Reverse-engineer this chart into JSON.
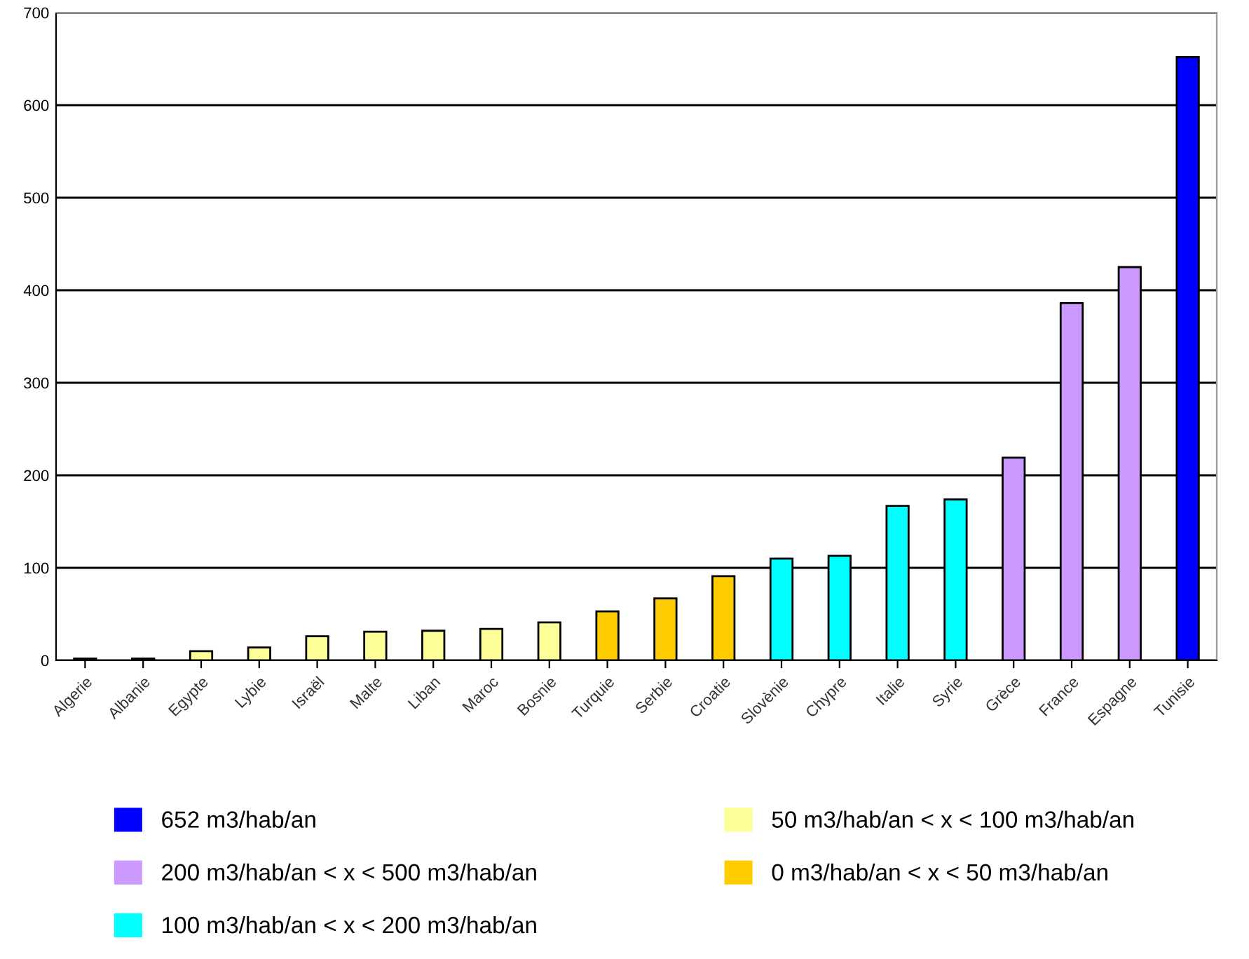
{
  "chart_data": {
    "type": "bar",
    "categories": [
      "Algerie",
      "Albanie",
      "Egypte",
      "Lybie",
      "Israël",
      "Malte",
      "Liban",
      "Maroc",
      "Bosnie",
      "Turquie",
      "Serbie",
      "Croatie",
      "Slovènie",
      "Chypre",
      "Italie",
      "Syrie",
      "Grèce",
      "France",
      "Espagne",
      "Tunisie"
    ],
    "series": [
      {
        "name": "652 m3/hab/an",
        "color": "#0000ff",
        "values": [
          null,
          null,
          null,
          null,
          null,
          null,
          null,
          null,
          null,
          null,
          null,
          null,
          null,
          null,
          null,
          null,
          null,
          null,
          null,
          652
        ]
      },
      {
        "name": "200 m3/hab/an < x < 500 m3/hab/an",
        "color": "#cc99ff",
        "values": [
          null,
          null,
          null,
          null,
          null,
          null,
          null,
          null,
          null,
          null,
          null,
          null,
          null,
          null,
          null,
          null,
          219,
          386,
          425,
          null
        ]
      },
      {
        "name": "100 m3/hab/an < x < 200 m3/hab/an",
        "color": "#00ffff",
        "values": [
          null,
          null,
          null,
          null,
          null,
          null,
          null,
          null,
          null,
          null,
          null,
          null,
          110,
          113,
          167,
          174,
          null,
          null,
          null,
          null
        ]
      },
      {
        "name": "50 m3/hab/an < x < 100 m3/hab/an",
        "color": "#ffff99",
        "values": [
          2,
          2,
          10,
          14,
          26,
          31,
          32,
          34,
          41,
          null,
          null,
          null,
          null,
          null,
          null,
          null,
          null,
          null,
          null,
          null
        ]
      },
      {
        "name": "0 m3/hab/an < x < 50 m3/hab/an",
        "color": "#ffcc00",
        "values": [
          null,
          null,
          null,
          null,
          null,
          null,
          null,
          null,
          null,
          53,
          67,
          91,
          null,
          null,
          null,
          null,
          null,
          null,
          null,
          null
        ]
      }
    ],
    "ylim": [
      0,
      700
    ],
    "yticks": [
      0,
      100,
      200,
      300,
      400,
      500,
      600,
      700
    ],
    "grid": "y",
    "legend": "bottom"
  }
}
